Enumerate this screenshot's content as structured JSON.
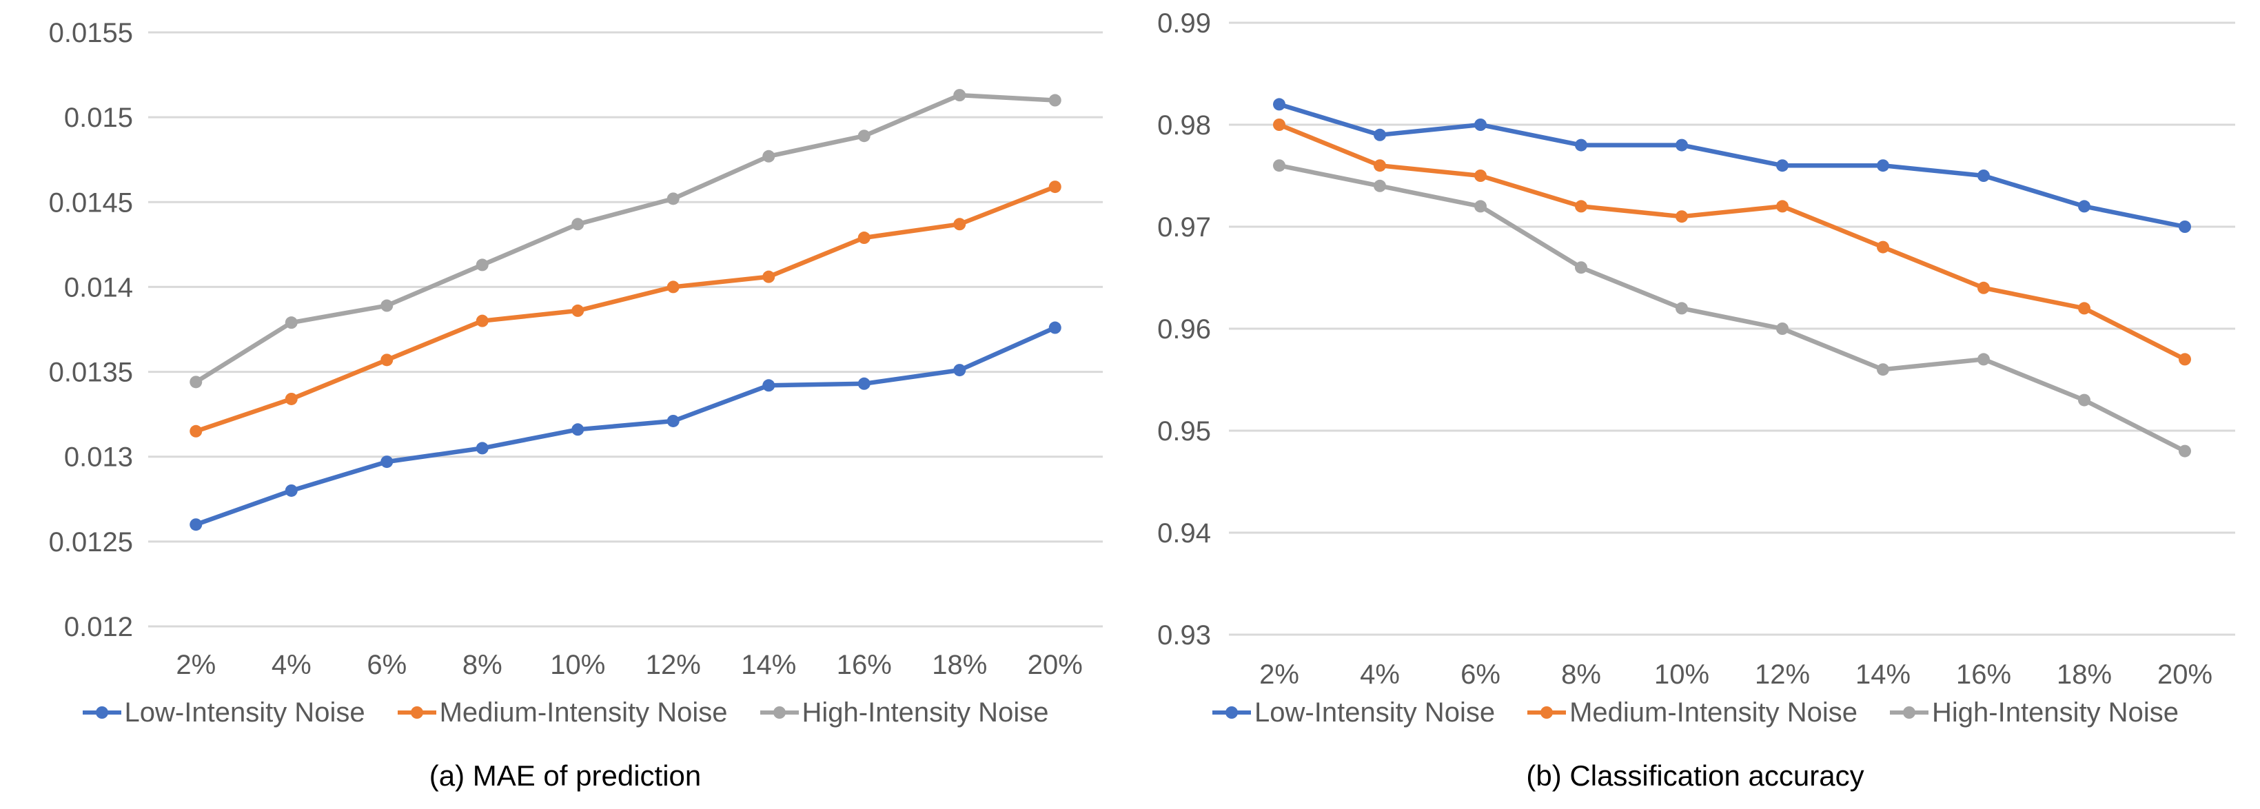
{
  "figure": {
    "background": "#ffffff",
    "gridline_color": "#d9d9d9",
    "axis_text_color": "#595959",
    "caption_text_color": "#000000"
  },
  "legend": {
    "position": "bottom",
    "items": [
      {
        "label": "Low-Intensity Noise",
        "color": "#4472c4"
      },
      {
        "label": "Medium-Intensity Noise",
        "color": "#ed7d31"
      },
      {
        "label": "High-Intensity Noise",
        "color": "#a5a5a5"
      }
    ]
  },
  "chart_data": [
    {
      "type": "line",
      "caption": "(a) MAE of prediction",
      "title": "",
      "xlabel": "",
      "ylabel": "",
      "grid": true,
      "legend_position": "bottom",
      "categories": [
        "2%",
        "4%",
        "6%",
        "8%",
        "10%",
        "12%",
        "14%",
        "16%",
        "18%",
        "20%"
      ],
      "ytick_labels": [
        "0.0155",
        "0.015",
        "0.0145",
        "0.014",
        "0.0135",
        "0.013",
        "0.0125",
        "0.012"
      ],
      "ylim": [
        0.012,
        0.0155
      ],
      "series": [
        {
          "name": "Low-Intensity Noise",
          "color": "#4472c4",
          "values": [
            0.0126,
            0.0128,
            0.01297,
            0.01305,
            0.01316,
            0.01321,
            0.01342,
            0.01343,
            0.01351,
            0.01376
          ]
        },
        {
          "name": "Medium-Intensity Noise",
          "color": "#ed7d31",
          "values": [
            0.01315,
            0.01334,
            0.01357,
            0.0138,
            0.01386,
            0.014,
            0.01406,
            0.01429,
            0.01437,
            0.01459
          ]
        },
        {
          "name": "High-Intensity Noise",
          "color": "#a5a5a5",
          "values": [
            0.01344,
            0.01379,
            0.01389,
            0.01413,
            0.01437,
            0.01452,
            0.01477,
            0.01489,
            0.01513,
            0.0151
          ]
        }
      ]
    },
    {
      "type": "line",
      "caption": "(b) Classification accuracy",
      "title": "",
      "xlabel": "",
      "ylabel": "",
      "grid": true,
      "legend_position": "bottom",
      "categories": [
        "2%",
        "4%",
        "6%",
        "8%",
        "10%",
        "12%",
        "14%",
        "16%",
        "18%",
        "20%"
      ],
      "ytick_labels": [
        "0.99",
        "0.98",
        "0.97",
        "0.96",
        "0.95",
        "0.94",
        "0.93"
      ],
      "ylim": [
        0.93,
        0.99
      ],
      "series": [
        {
          "name": "Low-Intensity Noise",
          "color": "#4472c4",
          "values": [
            0.982,
            0.979,
            0.98,
            0.978,
            0.978,
            0.976,
            0.976,
            0.975,
            0.972,
            0.97
          ]
        },
        {
          "name": "Medium-Intensity Noise",
          "color": "#ed7d31",
          "values": [
            0.98,
            0.976,
            0.975,
            0.972,
            0.971,
            0.972,
            0.968,
            0.964,
            0.962,
            0.957
          ]
        },
        {
          "name": "High-Intensity Noise",
          "color": "#a5a5a5",
          "values": [
            0.976,
            0.974,
            0.972,
            0.966,
            0.962,
            0.96,
            0.956,
            0.957,
            0.953,
            0.948
          ]
        }
      ]
    }
  ]
}
